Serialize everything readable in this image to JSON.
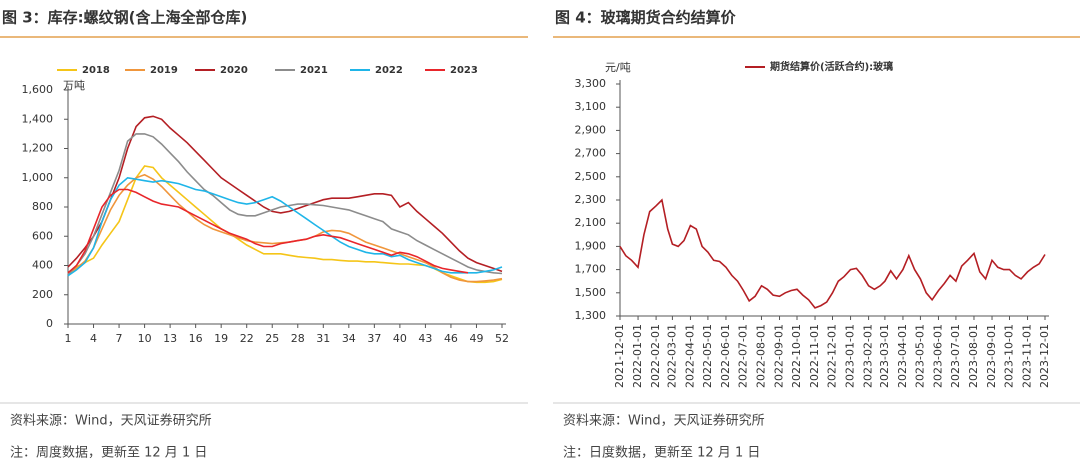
{
  "chart_data": [
    {
      "type": "line",
      "title": "图 3：库存:螺纹钢(含上海全部仓库)",
      "ylabel": "万吨",
      "source": "资料来源：Wind，天风证券研究所",
      "note": "注：周度数据，更新至 12 月 1 日",
      "legend": "top",
      "x": [
        1,
        2,
        3,
        4,
        5,
        6,
        7,
        8,
        9,
        10,
        11,
        12,
        13,
        14,
        15,
        16,
        17,
        18,
        19,
        20,
        21,
        22,
        23,
        24,
        25,
        26,
        27,
        28,
        29,
        30,
        31,
        32,
        33,
        34,
        35,
        36,
        37,
        38,
        39,
        40,
        41,
        42,
        43,
        44,
        45,
        46,
        47,
        48,
        49,
        50,
        51,
        52
      ],
      "xlim": [
        1,
        52
      ],
      "xticks": [
        1,
        4,
        7,
        10,
        13,
        16,
        19,
        22,
        25,
        28,
        31,
        34,
        37,
        40,
        43,
        46,
        49,
        52
      ],
      "ylim": [
        0,
        1600
      ],
      "yticks": [
        0,
        200,
        400,
        600,
        800,
        {
          "value": 1000,
          "label": "1,000"
        },
        {
          "value": 1200,
          "label": "1,200"
        },
        {
          "value": 1400,
          "label": "1,400"
        },
        {
          "value": 1600,
          "label": "1,600"
        }
      ],
      "series": [
        {
          "name": "2018",
          "color": "#f5c518",
          "values": [
            350,
            390,
            420,
            450,
            540,
            620,
            700,
            850,
            1000,
            1080,
            1070,
            1000,
            950,
            900,
            850,
            800,
            750,
            700,
            650,
            620,
            580,
            540,
            510,
            480,
            480,
            480,
            470,
            460,
            455,
            450,
            440,
            440,
            435,
            430,
            430,
            425,
            425,
            420,
            415,
            410,
            410,
            405,
            400,
            380,
            350,
            330,
            310,
            290,
            285,
            285,
            290,
            305
          ]
        },
        {
          "name": "2019",
          "color": "#f0963c",
          "values": [
            340,
            380,
            430,
            520,
            650,
            780,
            880,
            950,
            1000,
            1020,
            990,
            940,
            880,
            820,
            770,
            720,
            680,
            650,
            630,
            610,
            590,
            570,
            560,
            555,
            550,
            555,
            560,
            570,
            580,
            600,
            630,
            640,
            635,
            620,
            590,
            560,
            540,
            520,
            500,
            480,
            460,
            440,
            420,
            390,
            350,
            320,
            300,
            290,
            290,
            295,
            300,
            310
          ]
        },
        {
          "name": "2020",
          "color": "#b41f24",
          "values": [
            390,
            450,
            520,
            600,
            700,
            850,
            1000,
            1200,
            1350,
            1410,
            1420,
            1400,
            1340,
            1290,
            1240,
            1180,
            1120,
            1060,
            1000,
            960,
            920,
            880,
            840,
            800,
            770,
            760,
            770,
            790,
            810,
            830,
            850,
            860,
            860,
            860,
            870,
            880,
            890,
            890,
            880,
            800,
            830,
            770,
            720,
            670,
            620,
            560,
            500,
            450,
            420,
            400,
            380,
            360
          ]
        },
        {
          "name": "2021",
          "color": "#8c8c8c",
          "values": [
            340,
            400,
            480,
            600,
            750,
            900,
            1050,
            1250,
            1300,
            1300,
            1280,
            1230,
            1170,
            1110,
            1040,
            980,
            920,
            880,
            830,
            780,
            750,
            740,
            740,
            760,
            780,
            800,
            810,
            820,
            820,
            815,
            810,
            800,
            790,
            780,
            760,
            740,
            720,
            700,
            650,
            630,
            610,
            570,
            540,
            510,
            480,
            450,
            420,
            390,
            370,
            360,
            350,
            345
          ]
        },
        {
          "name": "2022",
          "color": "#1fb5e8",
          "values": [
            330,
            370,
            420,
            520,
            700,
            850,
            950,
            1000,
            990,
            980,
            970,
            980,
            970,
            960,
            940,
            920,
            910,
            890,
            870,
            850,
            830,
            820,
            830,
            850,
            870,
            840,
            800,
            760,
            720,
            680,
            640,
            600,
            560,
            530,
            510,
            490,
            480,
            480,
            460,
            470,
            440,
            420,
            400,
            380,
            360,
            350,
            350,
            350,
            350,
            360,
            370,
            390
          ]
        },
        {
          "name": "2023",
          "color": "#e8262b",
          "values": [
            350,
            400,
            500,
            650,
            800,
            880,
            920,
            920,
            900,
            870,
            840,
            820,
            810,
            800,
            770,
            740,
            710,
            680,
            650,
            620,
            600,
            580,
            550,
            530,
            530,
            550,
            560,
            570,
            580,
            600,
            610,
            600,
            590,
            570,
            550,
            530,
            510,
            490,
            470,
            490,
            480,
            460,
            430,
            400,
            380,
            370,
            360,
            350,
            null,
            null,
            null,
            null
          ]
        }
      ]
    },
    {
      "type": "line",
      "title": "图 4：玻璃期货合约结算价",
      "ylabel": "元/吨",
      "source": "资料来源：Wind，天风证券研究所",
      "note": "注：日度数据，更新至 12 月 1 日",
      "legend": "top",
      "x": [
        "2021-12-01",
        "2021-12-11",
        "2021-12-21",
        "2022-01-01",
        "2022-01-11",
        "2022-01-21",
        "2022-02-01",
        "2022-02-11",
        "2022-02-21",
        "2022-03-01",
        "2022-03-11",
        "2022-03-21",
        "2022-04-01",
        "2022-04-11",
        "2022-04-21",
        "2022-05-01",
        "2022-05-11",
        "2022-05-21",
        "2022-06-01",
        "2022-06-11",
        "2022-06-21",
        "2022-07-01",
        "2022-07-11",
        "2022-07-21",
        "2022-08-01",
        "2022-08-11",
        "2022-08-21",
        "2022-09-01",
        "2022-09-11",
        "2022-09-21",
        "2022-10-01",
        "2022-10-11",
        "2022-10-21",
        "2022-11-01",
        "2022-11-11",
        "2022-11-21",
        "2022-12-01",
        "2022-12-11",
        "2022-12-21",
        "2023-01-01",
        "2023-01-11",
        "2023-01-21",
        "2023-02-01",
        "2023-02-11",
        "2023-02-21",
        "2023-03-01",
        "2023-03-11",
        "2023-03-21",
        "2023-04-01",
        "2023-04-11",
        "2023-04-21",
        "2023-05-01",
        "2023-05-11",
        "2023-05-21",
        "2023-06-01",
        "2023-06-11",
        "2023-06-21",
        "2023-07-01",
        "2023-07-11",
        "2023-07-21",
        "2023-08-01",
        "2023-08-11",
        "2023-08-21",
        "2023-09-01",
        "2023-09-11",
        "2023-09-21",
        "2023-10-01",
        "2023-10-11",
        "2023-10-21",
        "2023-11-01",
        "2023-11-11",
        "2023-11-21",
        "2023-12-01"
      ],
      "xlim": [
        "2021-12-01",
        "2023-12-01"
      ],
      "xticks": [
        "2021-12-01",
        "2022-01-01",
        "2022-02-01",
        "2022-03-01",
        "2022-04-01",
        "2022-05-01",
        "2022-06-01",
        "2022-07-01",
        "2022-08-01",
        "2022-09-01",
        "2022-10-01",
        "2022-11-01",
        "2022-12-01",
        "2023-01-01",
        "2023-02-01",
        "2023-03-01",
        "2023-04-01",
        "2023-05-01",
        "2023-06-01",
        "2023-07-01",
        "2023-08-01",
        "2023-09-01",
        "2023-10-01",
        "2023-11-01",
        "2023-12-01"
      ],
      "ylim": [
        1300,
        3300
      ],
      "yticks": [
        {
          "value": 1300,
          "label": "1,300"
        },
        {
          "value": 1500,
          "label": "1,500"
        },
        {
          "value": 1700,
          "label": "1,700"
        },
        {
          "value": 1900,
          "label": "1,900"
        },
        {
          "value": 2100,
          "label": "2,100"
        },
        {
          "value": 2300,
          "label": "2,300"
        },
        {
          "value": 2500,
          "label": "2,500"
        },
        {
          "value": 2700,
          "label": "2,700"
        },
        {
          "value": 2900,
          "label": "2,900"
        },
        {
          "value": 3100,
          "label": "3,100"
        },
        {
          "value": 3300,
          "label": "3,300"
        }
      ],
      "series": [
        {
          "name": "期货结算价(活跃合约):玻璃",
          "color": "#b41f24",
          "values": [
            1900,
            1820,
            1780,
            1720,
            2000,
            2200,
            2250,
            2300,
            2050,
            1920,
            1900,
            1950,
            2080,
            2050,
            1900,
            1850,
            1780,
            1770,
            1720,
            1650,
            1600,
            1520,
            1430,
            1470,
            1560,
            1530,
            1480,
            1470,
            1500,
            1520,
            1530,
            1480,
            1440,
            1370,
            1390,
            1420,
            1500,
            1600,
            1640,
            1700,
            1710,
            1650,
            1560,
            1530,
            1560,
            1600,
            1690,
            1620,
            1700,
            1820,
            1700,
            1620,
            1500,
            1440,
            1520,
            1580,
            1650,
            1600,
            1730,
            1780,
            1840,
            1680,
            1620,
            1780,
            1720,
            1700,
            1700,
            1650,
            1620,
            1680,
            1720,
            1750,
            1830
          ]
        }
      ]
    }
  ]
}
